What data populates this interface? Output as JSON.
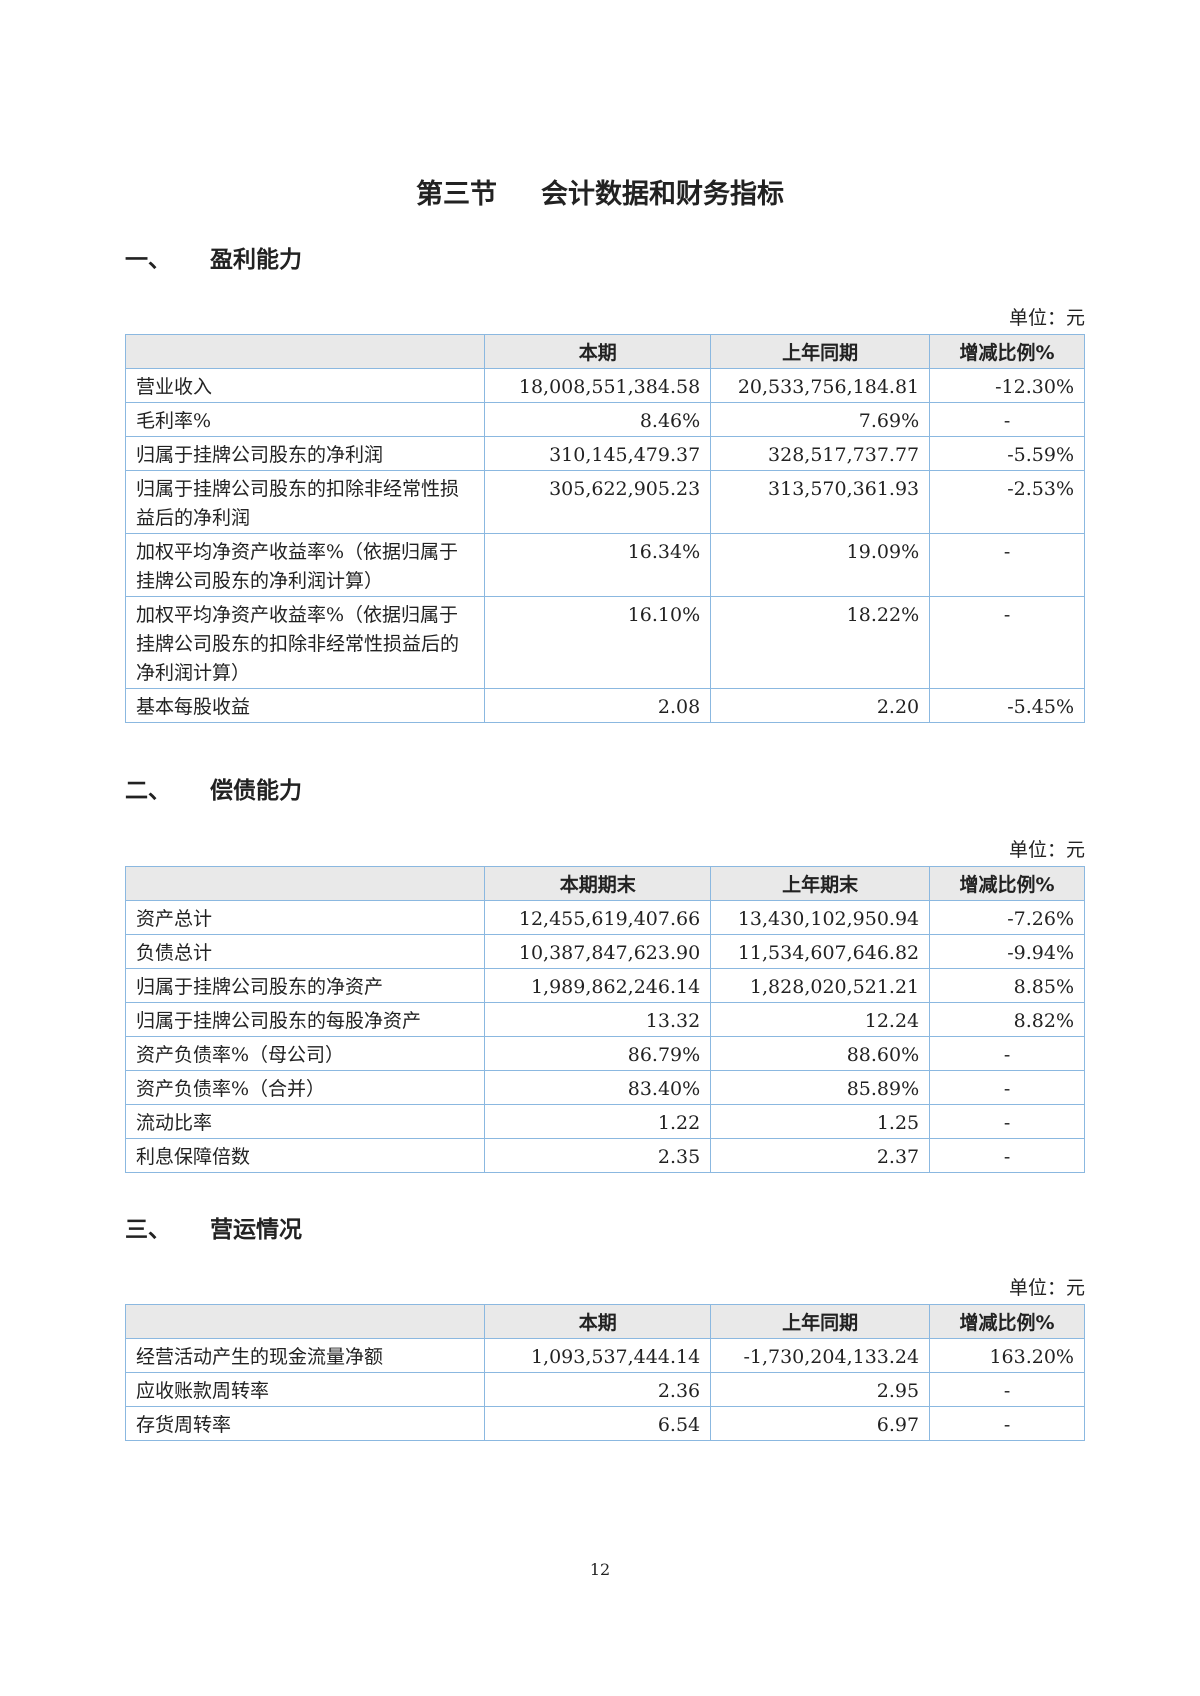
{
  "title": {
    "section": "第三节",
    "name": "会计数据和财务指标"
  },
  "unit_label": "单位：元",
  "sections": [
    {
      "num": "一、",
      "heading": "盈利能力",
      "columns": [
        "",
        "本期",
        "上年同期",
        "增减比例%"
      ],
      "rows": [
        [
          "营业收入",
          "18,008,551,384.58",
          "20,533,756,184.81",
          "-12.30%"
        ],
        [
          "毛利率%",
          "8.46%",
          "7.69%",
          "-"
        ],
        [
          "归属于挂牌公司股东的净利润",
          "310,145,479.37",
          "328,517,737.77",
          "-5.59%"
        ],
        [
          "归属于挂牌公司股东的扣除非经常性损益后的净利润",
          "305,622,905.23",
          "313,570,361.93",
          "-2.53%"
        ],
        [
          "加权平均净资产收益率%（依据归属于挂牌公司股东的净利润计算）",
          "16.34%",
          "19.09%",
          "-"
        ],
        [
          "加权平均净资产收益率%（依据归属于挂牌公司股东的扣除非经常性损益后的净利润计算）",
          "16.10%",
          "18.22%",
          "-"
        ],
        [
          "基本每股收益",
          "2.08",
          "2.20",
          "-5.45%"
        ]
      ]
    },
    {
      "num": "二、",
      "heading": "偿债能力",
      "columns": [
        "",
        "本期期末",
        "上年期末",
        "增减比例%"
      ],
      "rows": [
        [
          "资产总计",
          "12,455,619,407.66",
          "13,430,102,950.94",
          "-7.26%"
        ],
        [
          "负债总计",
          "10,387,847,623.90",
          "11,534,607,646.82",
          "-9.94%"
        ],
        [
          "归属于挂牌公司股东的净资产",
          "1,989,862,246.14",
          "1,828,020,521.21",
          "8.85%"
        ],
        [
          "归属于挂牌公司股东的每股净资产",
          "13.32",
          "12.24",
          "8.82%"
        ],
        [
          "资产负债率%（母公司）",
          "86.79%",
          "88.60%",
          "-"
        ],
        [
          "资产负债率%（合并）",
          "83.40%",
          "85.89%",
          "-"
        ],
        [
          "流动比率",
          "1.22",
          "1.25",
          "-"
        ],
        [
          "利息保障倍数",
          "2.35",
          "2.37",
          "-"
        ]
      ]
    },
    {
      "num": "三、",
      "heading": "营运情况",
      "columns": [
        "",
        "本期",
        "上年同期",
        "增减比例%"
      ],
      "rows": [
        [
          "经营活动产生的现金流量净额",
          "1,093,537,444.14",
          "-1,730,204,133.24",
          "163.20%"
        ],
        [
          "应收账款周转率",
          "2.36",
          "2.95",
          "-"
        ],
        [
          "存货周转率",
          "6.54",
          "6.97",
          "-"
        ]
      ]
    }
  ],
  "page_number": "12"
}
